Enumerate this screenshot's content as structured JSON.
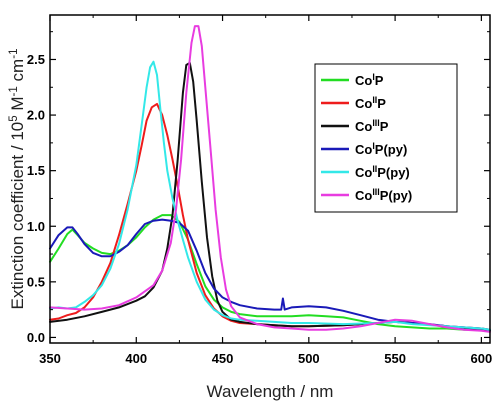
{
  "chart_data": {
    "type": "line",
    "title": "",
    "xlabel": "Wavelength / nm",
    "ylabel": "Extinction coefficient / 10<sup>5</sup> M<sup>-1</sup> cm<sup>-1</sup>",
    "xlim": [
      350,
      605
    ],
    "ylim": [
      -0.05,
      2.9
    ],
    "x_ticks": [
      350,
      400,
      450,
      500,
      550,
      600
    ],
    "y_ticks": [
      0.0,
      0.5,
      1.0,
      1.5,
      2.0,
      2.5
    ],
    "x_tick_labels": [
      "350",
      "400",
      "450",
      "500",
      "550",
      "600"
    ],
    "y_tick_labels": [
      "0.0",
      "0.5",
      "1.0",
      "1.5",
      "2.0",
      "2.5"
    ],
    "grid": false,
    "legend_position": "upper-right",
    "series": [
      {
        "name": "Co<sup>I</sup>P",
        "color": "#22dd22",
        "x": [
          350,
          355,
          360,
          363,
          366,
          370,
          375,
          380,
          385,
          390,
          395,
          400,
          405,
          410,
          415,
          420,
          425,
          430,
          435,
          440,
          445,
          450,
          455,
          460,
          470,
          480,
          490,
          500,
          510,
          520,
          530,
          540,
          550,
          560,
          570,
          580,
          590,
          600,
          605
        ],
        "y": [
          0.68,
          0.8,
          0.93,
          0.97,
          0.92,
          0.85,
          0.8,
          0.76,
          0.75,
          0.78,
          0.83,
          0.9,
          0.99,
          1.06,
          1.1,
          1.1,
          1.04,
          0.88,
          0.66,
          0.46,
          0.34,
          0.27,
          0.23,
          0.21,
          0.19,
          0.19,
          0.19,
          0.2,
          0.19,
          0.18,
          0.15,
          0.12,
          0.1,
          0.09,
          0.08,
          0.08,
          0.07,
          0.07,
          0.07
        ]
      },
      {
        "name": "Co<sup>II</sup>P",
        "color": "#ee1c1c",
        "x": [
          350,
          355,
          360,
          365,
          370,
          375,
          380,
          385,
          390,
          395,
          400,
          403,
          406,
          409,
          412,
          415,
          418,
          421,
          424,
          427,
          430,
          435,
          440,
          445,
          450,
          455,
          460,
          470,
          480,
          490,
          500,
          520,
          540,
          550,
          560,
          580,
          600,
          605
        ],
        "y": [
          0.16,
          0.17,
          0.2,
          0.22,
          0.27,
          0.36,
          0.5,
          0.67,
          0.92,
          1.2,
          1.5,
          1.72,
          1.95,
          2.07,
          2.1,
          2.0,
          1.82,
          1.6,
          1.36,
          1.1,
          0.88,
          0.58,
          0.38,
          0.26,
          0.19,
          0.15,
          0.13,
          0.12,
          0.11,
          0.1,
          0.1,
          0.11,
          0.13,
          0.14,
          0.13,
          0.1,
          0.08,
          0.07
        ]
      },
      {
        "name": "Co<sup>III</sup>P",
        "color": "#111111",
        "x": [
          350,
          360,
          370,
          380,
          390,
          400,
          405,
          410,
          415,
          418,
          421,
          424,
          427,
          429,
          431,
          433,
          435,
          438,
          441,
          444,
          447,
          450,
          455,
          460,
          470,
          480,
          490,
          500,
          520,
          540,
          550,
          560,
          580,
          600,
          605
        ],
        "y": [
          0.14,
          0.16,
          0.19,
          0.23,
          0.27,
          0.33,
          0.37,
          0.45,
          0.6,
          0.8,
          1.1,
          1.6,
          2.2,
          2.45,
          2.47,
          2.3,
          1.95,
          1.4,
          0.9,
          0.55,
          0.33,
          0.23,
          0.16,
          0.14,
          0.12,
          0.11,
          0.1,
          0.1,
          0.11,
          0.13,
          0.14,
          0.13,
          0.1,
          0.07,
          0.06
        ]
      },
      {
        "name": "Co<sup>I</sup>P(py)",
        "color": "#1a1ab8",
        "x": [
          350,
          355,
          360,
          363,
          366,
          370,
          375,
          380,
          385,
          390,
          395,
          400,
          405,
          410,
          415,
          420,
          425,
          430,
          435,
          440,
          445,
          450,
          455,
          460,
          470,
          480,
          484,
          485,
          486,
          490,
          500,
          510,
          520,
          530,
          540,
          550,
          560,
          570,
          580,
          590,
          600,
          605
        ],
        "y": [
          0.8,
          0.92,
          0.99,
          0.99,
          0.93,
          0.84,
          0.76,
          0.73,
          0.73,
          0.77,
          0.83,
          0.93,
          1.02,
          1.05,
          1.06,
          1.05,
          1.03,
          0.96,
          0.78,
          0.58,
          0.44,
          0.36,
          0.32,
          0.29,
          0.26,
          0.25,
          0.25,
          0.35,
          0.25,
          0.27,
          0.28,
          0.27,
          0.24,
          0.2,
          0.16,
          0.14,
          0.13,
          0.12,
          0.1,
          0.09,
          0.08,
          0.07
        ]
      },
      {
        "name": "Co<sup>II</sup>P(py)",
        "color": "#33e8e8",
        "x": [
          350,
          355,
          360,
          365,
          370,
          375,
          380,
          385,
          390,
          395,
          400,
          403,
          406,
          408,
          410,
          412,
          414,
          416,
          418,
          421,
          424,
          427,
          430,
          435,
          440,
          445,
          450,
          455,
          460,
          470,
          480,
          490,
          500,
          520,
          540,
          550,
          560,
          580,
          600,
          605
        ],
        "y": [
          0.26,
          0.27,
          0.26,
          0.27,
          0.32,
          0.38,
          0.47,
          0.62,
          0.84,
          1.15,
          1.55,
          1.9,
          2.25,
          2.43,
          2.48,
          2.36,
          2.05,
          1.75,
          1.5,
          1.25,
          1.05,
          0.88,
          0.72,
          0.5,
          0.34,
          0.25,
          0.2,
          0.17,
          0.16,
          0.15,
          0.14,
          0.13,
          0.13,
          0.12,
          0.13,
          0.14,
          0.12,
          0.1,
          0.08,
          0.07
        ]
      },
      {
        "name": "Co<sup>III</sup>P(py)",
        "color": "#e83ce0",
        "x": [
          350,
          360,
          370,
          380,
          390,
          400,
          410,
          415,
          420,
          423,
          426,
          429,
          432,
          434,
          436,
          438,
          440,
          443,
          446,
          449,
          452,
          455,
          460,
          470,
          480,
          490,
          500,
          510,
          520,
          530,
          540,
          550,
          560,
          570,
          580,
          590,
          600,
          605
        ],
        "y": [
          0.27,
          0.26,
          0.25,
          0.26,
          0.29,
          0.36,
          0.47,
          0.6,
          0.85,
          1.15,
          1.6,
          2.2,
          2.65,
          2.8,
          2.8,
          2.62,
          2.25,
          1.7,
          1.15,
          0.72,
          0.43,
          0.28,
          0.18,
          0.12,
          0.09,
          0.08,
          0.07,
          0.07,
          0.08,
          0.1,
          0.13,
          0.16,
          0.15,
          0.12,
          0.09,
          0.07,
          0.06,
          0.05
        ]
      }
    ]
  }
}
